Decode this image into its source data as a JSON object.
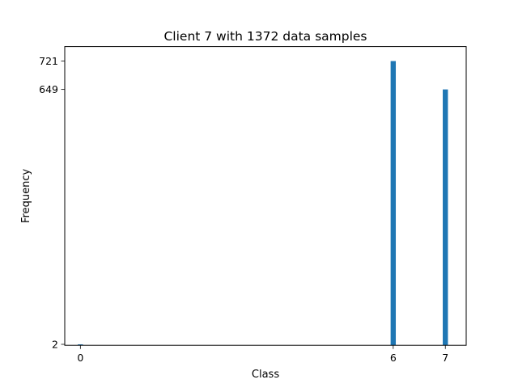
{
  "chart_data": {
    "type": "bar",
    "title": "Client 7  with 1372 data samples",
    "xlabel": "Class",
    "ylabel": "Frequency",
    "x": [
      0,
      6,
      7
    ],
    "values": [
      2,
      721,
      649
    ],
    "x_ticks": [
      "0",
      "6",
      "7"
    ],
    "y_ticks": [
      "2",
      "649",
      "721"
    ],
    "xlim": [
      -0.3,
      7.4
    ],
    "ylim": [
      -0.5,
      757.8
    ],
    "bar_color": "#1f77b4",
    "grid": false,
    "legend": "none"
  }
}
